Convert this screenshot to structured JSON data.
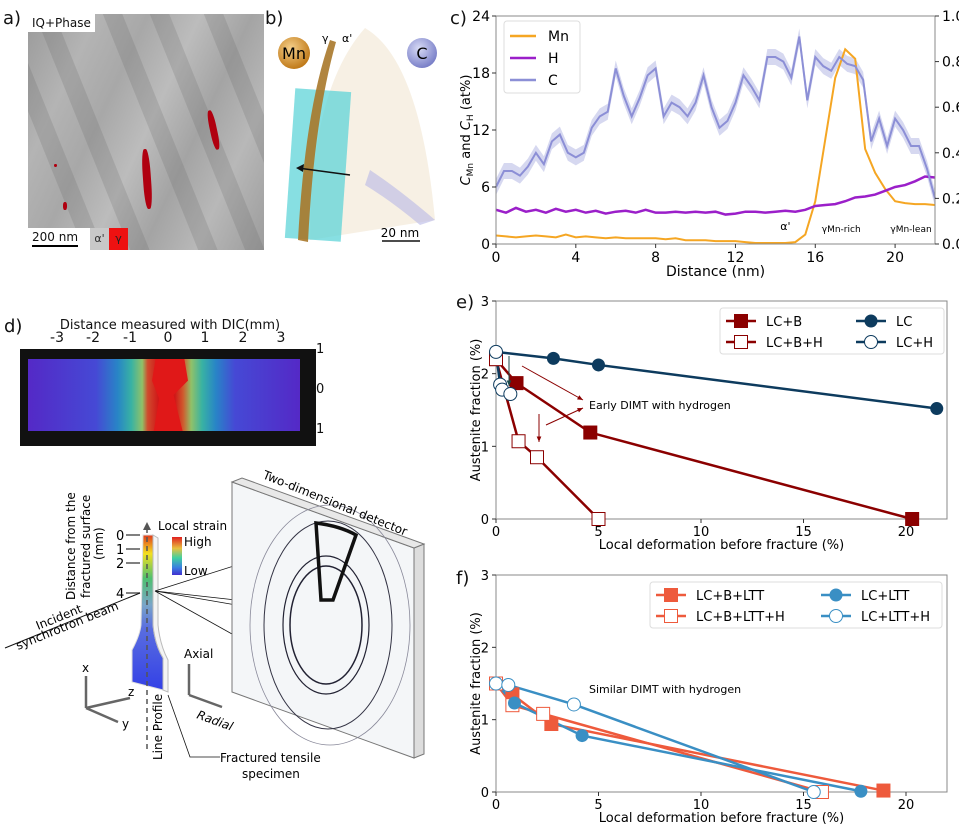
{
  "panels": {
    "a": {
      "label": "a)",
      "overlay_label": "IQ+Phase",
      "scale_bar": "200 nm",
      "legend": [
        {
          "symbol": "α'",
          "color": "#c8c8c8"
        },
        {
          "symbol": "γ",
          "color": "#ee1111"
        }
      ]
    },
    "b": {
      "label": "b)",
      "element_left": "Mn",
      "element_right": "C",
      "phase_gamma": "γ",
      "phase_alpha": "α'",
      "scale_bar": "20 nm",
      "colors": {
        "mn": "#d4952a",
        "c": "#8a8fd0",
        "roi": "#5fd4d8"
      }
    },
    "c": {
      "label": "c)"
    },
    "d": {
      "label": "d)",
      "dic_title": "Distance measured with DIC(mm)",
      "dic_x_ticks": [
        "-3",
        "-2",
        "-1",
        "0",
        "1",
        "2",
        "3"
      ],
      "dic_y_ticks": [
        "1",
        "0",
        "1"
      ],
      "distance_axis_label": "Distance from the fractured surface (mm)",
      "distance_ticks": [
        "0",
        "1",
        "2",
        "4"
      ],
      "strain_label": "Local strain",
      "strain_high": "High",
      "strain_low": "Low",
      "beam_label_1": "Incident",
      "beam_label_2": "synchrotron beam",
      "axis_x": "x",
      "axis_y": "y",
      "axis_z": "z",
      "axial": "Axial",
      "radial": "Radial",
      "line_profile": "Line Profile",
      "specimen_label_1": "Fractured tensile",
      "specimen_label_2": "specimen",
      "detector_label": "Two-dimensional detector"
    },
    "e": {
      "label": "e)"
    },
    "f": {
      "label": "f)"
    }
  },
  "chart_data": [
    {
      "id": "c",
      "type": "line",
      "title": "",
      "xlabel": "Distance (nm)",
      "ylabel": "C_Mn and C_H (at%)",
      "ylabel_right": "C_C (at%)",
      "xlim": [
        0,
        22
      ],
      "ylim": [
        0,
        24
      ],
      "ylim_right": [
        0,
        1.0
      ],
      "xticks": [
        "0",
        "4",
        "8",
        "12",
        "16",
        "20"
      ],
      "yticks": [
        "0",
        "6",
        "12",
        "18",
        "24"
      ],
      "yticks_right": [
        "0.0",
        "0.2",
        "0.4",
        "0.6",
        "0.8",
        "1.0"
      ],
      "legend_position": "top-left",
      "annotations": [
        "α'",
        "γMn-rich",
        "γMn-lean"
      ],
      "series": [
        {
          "name": "Mn",
          "axis": "left",
          "color": "#f5a623",
          "x": [
            0,
            0.5,
            1,
            1.5,
            2,
            2.5,
            3,
            3.5,
            4,
            4.5,
            5,
            5.5,
            6,
            6.5,
            7,
            7.5,
            8,
            8.5,
            9,
            9.5,
            10,
            10.5,
            11,
            11.5,
            12,
            12.5,
            13,
            13.5,
            14,
            14.5,
            15,
            15.5,
            16,
            16.5,
            17,
            17.5,
            18,
            18.5,
            19,
            19.5,
            20,
            20.5,
            21,
            21.5,
            22
          ],
          "values": [
            0.9,
            0.8,
            0.7,
            0.8,
            0.9,
            0.8,
            0.7,
            1.0,
            0.7,
            0.8,
            0.7,
            0.6,
            0.7,
            0.6,
            0.6,
            0.6,
            0.6,
            0.5,
            0.6,
            0.4,
            0.4,
            0.4,
            0.3,
            0.3,
            0.3,
            0.2,
            0.1,
            0.1,
            0.1,
            0.1,
            0.2,
            1.0,
            4.5,
            11.0,
            17.5,
            20.5,
            19.5,
            10.0,
            7.5,
            5.8,
            4.5,
            4.3,
            4.2,
            4.2,
            4.1
          ]
        },
        {
          "name": "H",
          "axis": "left",
          "color": "#9b1fc9",
          "x": [
            0,
            0.5,
            1,
            1.5,
            2,
            2.5,
            3,
            3.5,
            4,
            4.5,
            5,
            5.5,
            6,
            6.5,
            7,
            7.5,
            8,
            8.5,
            9,
            9.5,
            10,
            10.5,
            11,
            11.5,
            12,
            12.5,
            13,
            13.5,
            14,
            14.5,
            15,
            15.5,
            16,
            16.5,
            17,
            17.5,
            18,
            18.5,
            19,
            19.5,
            20,
            20.5,
            21,
            21.5,
            22
          ],
          "values": [
            3.6,
            3.3,
            3.8,
            3.4,
            3.6,
            3.3,
            3.7,
            3.4,
            3.6,
            3.3,
            3.5,
            3.2,
            3.4,
            3.5,
            3.3,
            3.6,
            3.3,
            3.3,
            3.4,
            3.3,
            3.4,
            3.3,
            3.4,
            3.1,
            3.2,
            3.4,
            3.4,
            3.3,
            3.4,
            3.5,
            3.4,
            3.6,
            4.0,
            4.1,
            4.2,
            4.5,
            4.9,
            5.0,
            5.2,
            5.6,
            6.0,
            6.2,
            6.6,
            7.1,
            7.0
          ]
        },
        {
          "name": "C",
          "axis": "right",
          "color": "#8c8fd6",
          "band_color": "#c8cbeb",
          "x": [
            0,
            0.4,
            0.8,
            1.2,
            1.6,
            2.0,
            2.4,
            2.8,
            3.2,
            3.6,
            4.0,
            4.4,
            4.8,
            5.2,
            5.6,
            6.0,
            6.4,
            6.8,
            7.2,
            7.6,
            8.0,
            8.4,
            8.8,
            9.2,
            9.6,
            10.0,
            10.4,
            10.8,
            11.2,
            11.6,
            12.0,
            12.4,
            12.8,
            13.2,
            13.6,
            14.0,
            14.4,
            14.8,
            15.2,
            15.6,
            16.0,
            16.4,
            16.8,
            17.2,
            17.6,
            18.0,
            18.4,
            18.8,
            19.2,
            19.6,
            20.0,
            20.4,
            20.8,
            21.2,
            21.6,
            22.0
          ],
          "values": [
            0.25,
            0.32,
            0.32,
            0.3,
            0.34,
            0.4,
            0.35,
            0.45,
            0.48,
            0.4,
            0.38,
            0.4,
            0.51,
            0.56,
            0.58,
            0.77,
            0.65,
            0.56,
            0.64,
            0.74,
            0.77,
            0.56,
            0.62,
            0.6,
            0.56,
            0.62,
            0.74,
            0.6,
            0.51,
            0.54,
            0.62,
            0.74,
            0.69,
            0.63,
            0.82,
            0.82,
            0.8,
            0.73,
            0.91,
            0.63,
            0.82,
            0.78,
            0.76,
            0.82,
            0.79,
            0.78,
            0.72,
            0.45,
            0.55,
            0.43,
            0.55,
            0.5,
            0.43,
            0.43,
            0.33,
            0.2
          ]
        }
      ]
    },
    {
      "id": "e",
      "type": "line",
      "title": "",
      "xlabel": "Local deformation before fracture (%)",
      "ylabel": "Austenite fraction (%)",
      "xlim": [
        0,
        22
      ],
      "ylim": [
        0,
        3
      ],
      "xticks": [
        "0",
        "5",
        "10",
        "15",
        "20"
      ],
      "yticks": [
        "0",
        "1",
        "2",
        "3"
      ],
      "legend_position": "top-right",
      "annotations": [
        "Early DIMT with hydrogen"
      ],
      "series": [
        {
          "name": "LC+B",
          "marker": "square-filled",
          "color": "#8b0000",
          "x": [
            0,
            1.0,
            4.6,
            20.3
          ],
          "values": [
            2.2,
            1.87,
            1.19,
            0.0
          ]
        },
        {
          "name": "LC+B+H",
          "marker": "square-open",
          "color": "#8b0000",
          "x": [
            0,
            1.1,
            2.0,
            5.0
          ],
          "values": [
            2.2,
            1.07,
            0.85,
            0.0
          ]
        },
        {
          "name": "LC",
          "marker": "circle-filled",
          "color": "#0d3b5e",
          "x": [
            0,
            2.8,
            5.0,
            21.5
          ],
          "values": [
            2.3,
            2.21,
            2.12,
            1.52
          ]
        },
        {
          "name": "LC+H",
          "marker": "circle-open",
          "color": "#0d3b5e",
          "x": [
            0,
            0.2,
            0.3,
            0.7
          ],
          "values": [
            2.3,
            1.85,
            1.78,
            1.72
          ]
        }
      ]
    },
    {
      "id": "f",
      "type": "line",
      "title": "",
      "xlabel": "Local deformation before fracture (%)",
      "ylabel": "Austenite fraction (%)",
      "xlim": [
        0,
        22
      ],
      "ylim": [
        0,
        3
      ],
      "xticks": [
        "0",
        "5",
        "10",
        "15",
        "20"
      ],
      "yticks": [
        "0",
        "1",
        "2",
        "3"
      ],
      "legend_position": "top-right",
      "annotations": [
        "Similar DIMT with hydrogen"
      ],
      "series": [
        {
          "name": "LC+B+LTT",
          "marker": "square-filled",
          "color": "#ee5a3c",
          "x": [
            0,
            0.8,
            2.7,
            18.9
          ],
          "values": [
            1.5,
            1.35,
            0.94,
            0.02
          ]
        },
        {
          "name": "LC+B+LTT+H",
          "marker": "square-open",
          "color": "#ee5a3c",
          "x": [
            0,
            0.8,
            2.3,
            15.9
          ],
          "values": [
            1.5,
            1.2,
            1.08,
            0.0
          ]
        },
        {
          "name": "LC+LTT",
          "marker": "circle-filled",
          "color": "#3a8fc4",
          "x": [
            0,
            0.9,
            4.2,
            17.8
          ],
          "values": [
            1.5,
            1.23,
            0.78,
            0.01
          ]
        },
        {
          "name": "LC+LTT+H",
          "marker": "circle-open",
          "color": "#3a8fc4",
          "x": [
            0,
            0.6,
            3.8,
            15.5
          ],
          "values": [
            1.5,
            1.48,
            1.21,
            0.0
          ]
        }
      ]
    }
  ]
}
